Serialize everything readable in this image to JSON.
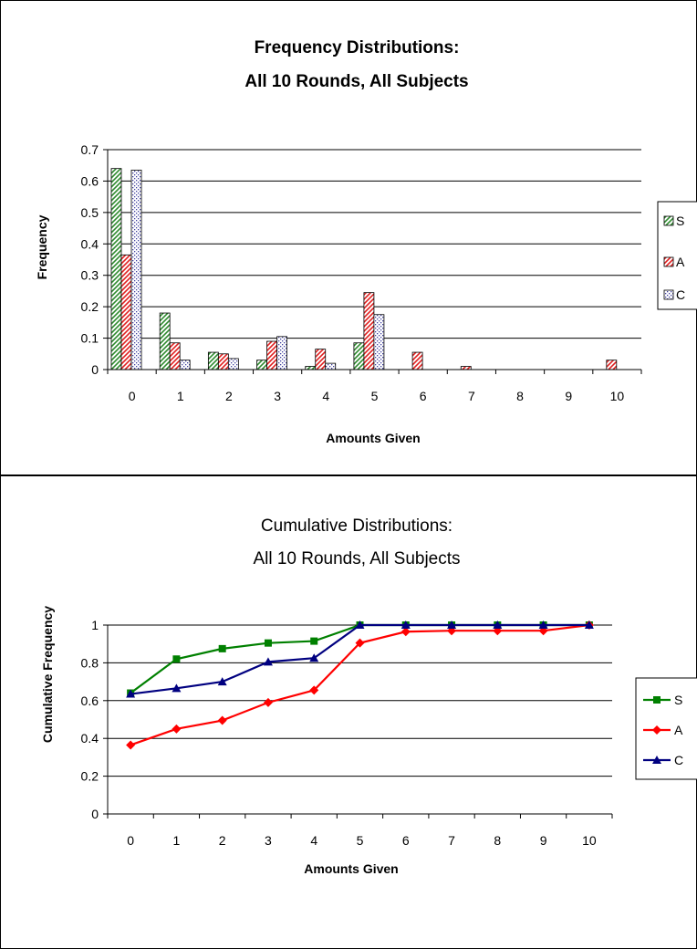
{
  "chart_data": [
    {
      "type": "bar",
      "title_line1": "Frequency Distributions:",
      "title_line2": "All 10 Rounds, All Subjects",
      "xlabel": "Amounts Given",
      "ylabel": "Frequency",
      "ylim": [
        0,
        0.7
      ],
      "y_ticks": [
        "0",
        "0.1",
        "0.2",
        "0.3",
        "0.4",
        "0.5",
        "0.6",
        "0.7"
      ],
      "categories": [
        "0",
        "1",
        "2",
        "3",
        "4",
        "5",
        "6",
        "7",
        "8",
        "9",
        "10"
      ],
      "grid": true,
      "legend_position": "right",
      "series": [
        {
          "name": "S",
          "color": "#2e8b2e",
          "pattern": "diagonal-green",
          "values": [
            0.64,
            0.18,
            0.055,
            0.03,
            0.01,
            0.085,
            0,
            0,
            0,
            0,
            0
          ]
        },
        {
          "name": "A",
          "color": "#e02020",
          "pattern": "diagonal-red",
          "values": [
            0.365,
            0.085,
            0.05,
            0.09,
            0.065,
            0.245,
            0.055,
            0.01,
            0,
            0,
            0.03
          ]
        },
        {
          "name": "C",
          "color": "#4040a0",
          "pattern": "dots-blue",
          "values": [
            0.635,
            0.03,
            0.035,
            0.105,
            0.02,
            0.175,
            0,
            0,
            0,
            0,
            0
          ]
        }
      ]
    },
    {
      "type": "line",
      "title_line1": "Cumulative Distributions:",
      "title_line2": "All 10 Rounds, All Subjects",
      "xlabel": "Amounts Given",
      "ylabel": "Cumulative Frequency",
      "ylim": [
        0,
        1
      ],
      "y_ticks": [
        "0",
        "0.2",
        "0.4",
        "0.6",
        "0.8",
        "1"
      ],
      "categories": [
        "0",
        "1",
        "2",
        "3",
        "4",
        "5",
        "6",
        "7",
        "8",
        "9",
        "10"
      ],
      "grid": true,
      "legend_position": "right",
      "series": [
        {
          "name": "S",
          "color": "#008000",
          "marker": "square",
          "values": [
            0.64,
            0.82,
            0.875,
            0.905,
            0.915,
            1.0,
            1.0,
            1.0,
            1.0,
            1.0,
            1.0
          ]
        },
        {
          "name": "A",
          "color": "#ff0000",
          "marker": "diamond",
          "values": [
            0.365,
            0.45,
            0.495,
            0.59,
            0.655,
            0.905,
            0.965,
            0.97,
            0.97,
            0.97,
            1.0
          ]
        },
        {
          "name": "C",
          "color": "#000080",
          "marker": "triangle",
          "values": [
            0.635,
            0.665,
            0.7,
            0.805,
            0.825,
            1.0,
            1.0,
            1.0,
            1.0,
            1.0,
            1.0
          ]
        }
      ]
    }
  ]
}
